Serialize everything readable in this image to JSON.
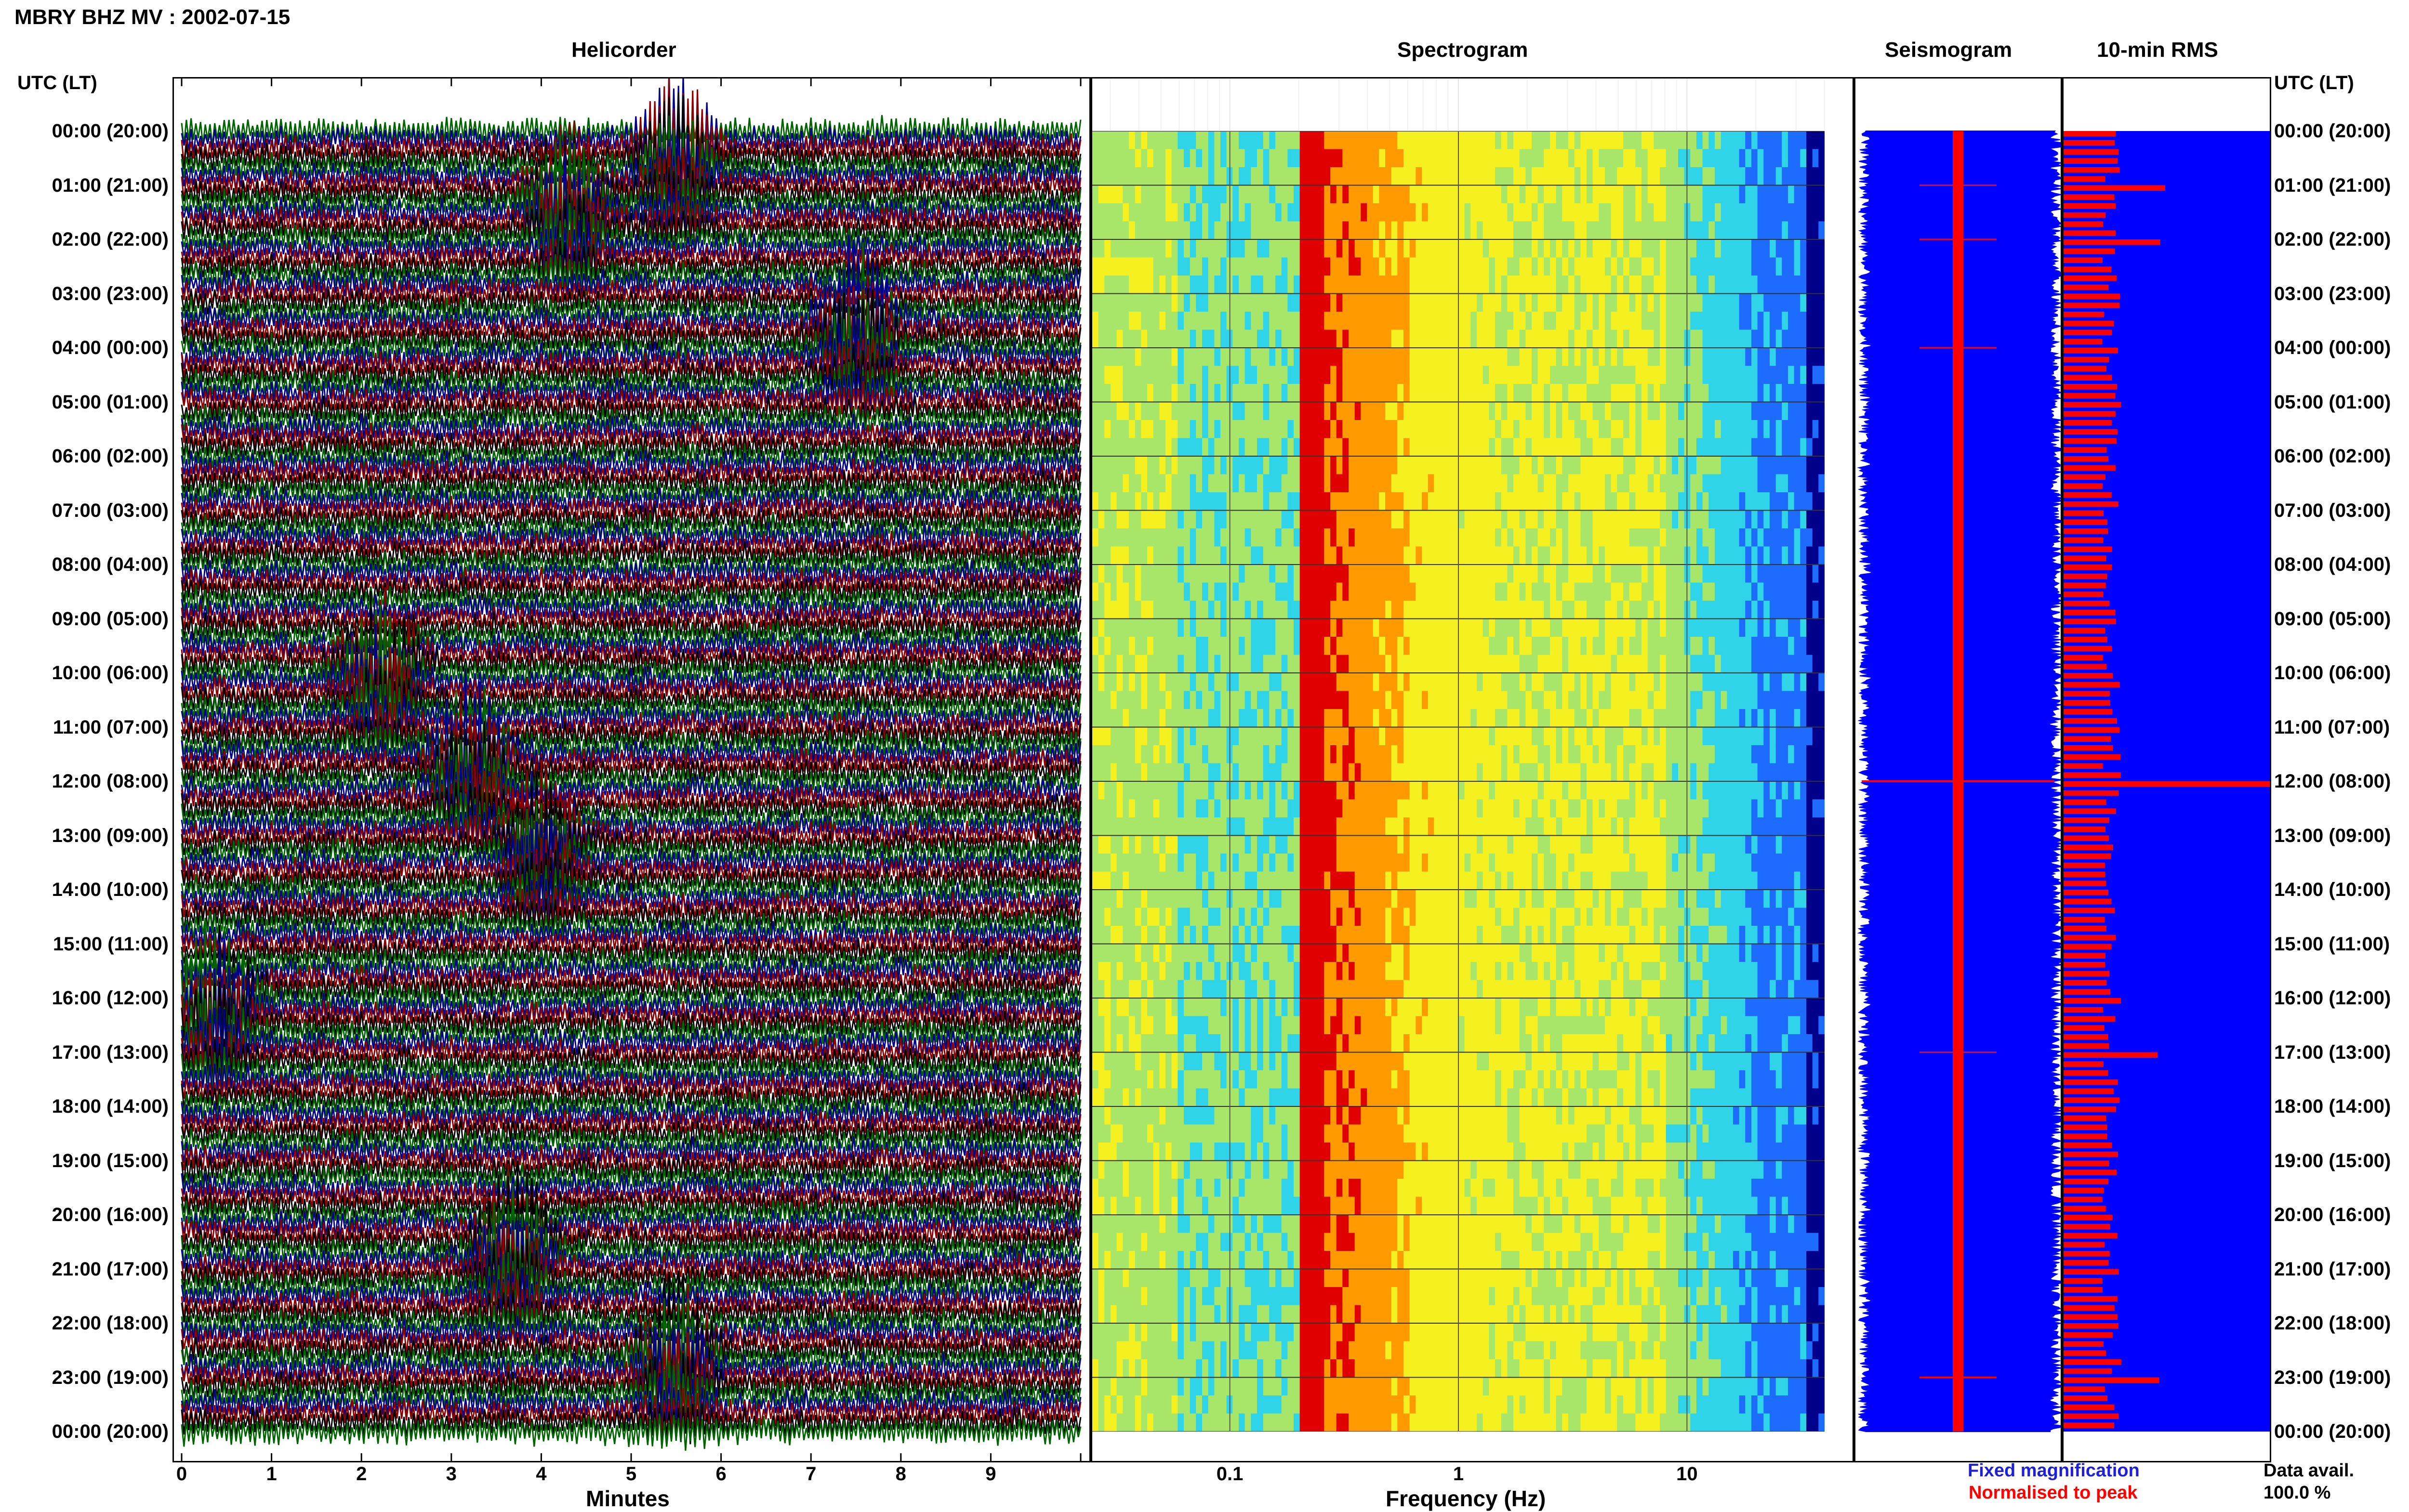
{
  "page_title": "MBRY BHZ MV : 2002-07-15",
  "panels": {
    "helicorder": "Helicorder",
    "spectrogram": "Spectrogram",
    "seismogram": "Seismogram",
    "rms": "10-min RMS"
  },
  "axis_header_left": "UTC (LT)",
  "axis_header_right": "UTC (LT)",
  "time_labels": [
    "00:00 (20:00)",
    "01:00 (21:00)",
    "02:00 (22:00)",
    "03:00 (23:00)",
    "04:00 (00:00)",
    "05:00 (01:00)",
    "06:00 (02:00)",
    "07:00 (03:00)",
    "08:00 (04:00)",
    "09:00 (05:00)",
    "10:00 (06:00)",
    "11:00 (07:00)",
    "12:00 (08:00)",
    "13:00 (09:00)",
    "14:00 (10:00)",
    "15:00 (11:00)",
    "16:00 (12:00)",
    "17:00 (13:00)",
    "18:00 (14:00)",
    "19:00 (15:00)",
    "20:00 (16:00)",
    "21:00 (17:00)",
    "22:00 (18:00)",
    "23:00 (19:00)",
    "00:00 (20:00)"
  ],
  "helicorder_xlabel": "Minutes",
  "helicorder_ticks": [
    "0",
    "1",
    "2",
    "3",
    "4",
    "5",
    "6",
    "7",
    "8",
    "9"
  ],
  "spectrogram_xlabel": "Frequency (Hz)",
  "spectrogram_ticks": [
    "0.1",
    "1",
    "10"
  ],
  "legend": {
    "fixed": "Fixed magnification",
    "normalised": "Normalised to peak",
    "fixed_color": "#1f1fd6",
    "normalised_color": "#ff0000"
  },
  "data_avail_label": "Data avail.",
  "data_avail_value": "100.0 %",
  "colors": {
    "helicorder_traces": [
      "#000000",
      "#8b0000",
      "#006400",
      "#00008b"
    ],
    "spectrogram_scale": [
      "#00008b",
      "#1e6bff",
      "#2fd4e8",
      "#a8e66a",
      "#f5f020",
      "#ff9a00",
      "#e00000"
    ],
    "seismogram_fill": "#0000ff",
    "seismogram_center": "#ff0000",
    "rms_bar": "#ff0000",
    "rms_background": "#0000ff"
  },
  "chart_data": [
    {
      "type": "line",
      "title": "Helicorder",
      "xlabel": "Minutes",
      "xlim": [
        0,
        10
      ],
      "rows": 144,
      "events_minute_hour": [
        {
          "hour": 0.3,
          "minute": 5.5,
          "color": "#8b0000"
        },
        {
          "hour": 1.2,
          "minute": 4.3,
          "color": "#006400"
        },
        {
          "hour": 3.5,
          "minute": 7.5,
          "color": "#000000"
        },
        {
          "hour": 9.8,
          "minute": 2.2,
          "color": "#000000"
        },
        {
          "hour": 11.5,
          "minute": 3.2,
          "color": "#00008b"
        },
        {
          "hour": 13.0,
          "minute": 4.0,
          "color": "#000000"
        },
        {
          "hour": 16.0,
          "minute": 0.4,
          "color": "#006400"
        },
        {
          "hour": 20.5,
          "minute": 3.7,
          "color": "#006400"
        },
        {
          "hour": 22.5,
          "minute": 5.5,
          "color": "#000000"
        }
      ]
    },
    {
      "type": "heatmap",
      "title": "Spectrogram",
      "xlabel": "Frequency (Hz)",
      "xscale": "log",
      "xlim": [
        0.025,
        40
      ],
      "peak_frequency_band_hz": [
        0.22,
        0.6
      ],
      "ylim_hours": [
        0,
        24
      ]
    },
    {
      "type": "area",
      "title": "Seismogram",
      "ylim_hours": [
        0,
        24
      ]
    },
    {
      "type": "bar",
      "title": "10-min RMS",
      "ylim_hours": [
        0,
        24
      ],
      "peak_hour": 12.0,
      "secondary_peaks_hours": [
        1.0,
        2.0,
        17.0,
        23.0
      ]
    }
  ]
}
